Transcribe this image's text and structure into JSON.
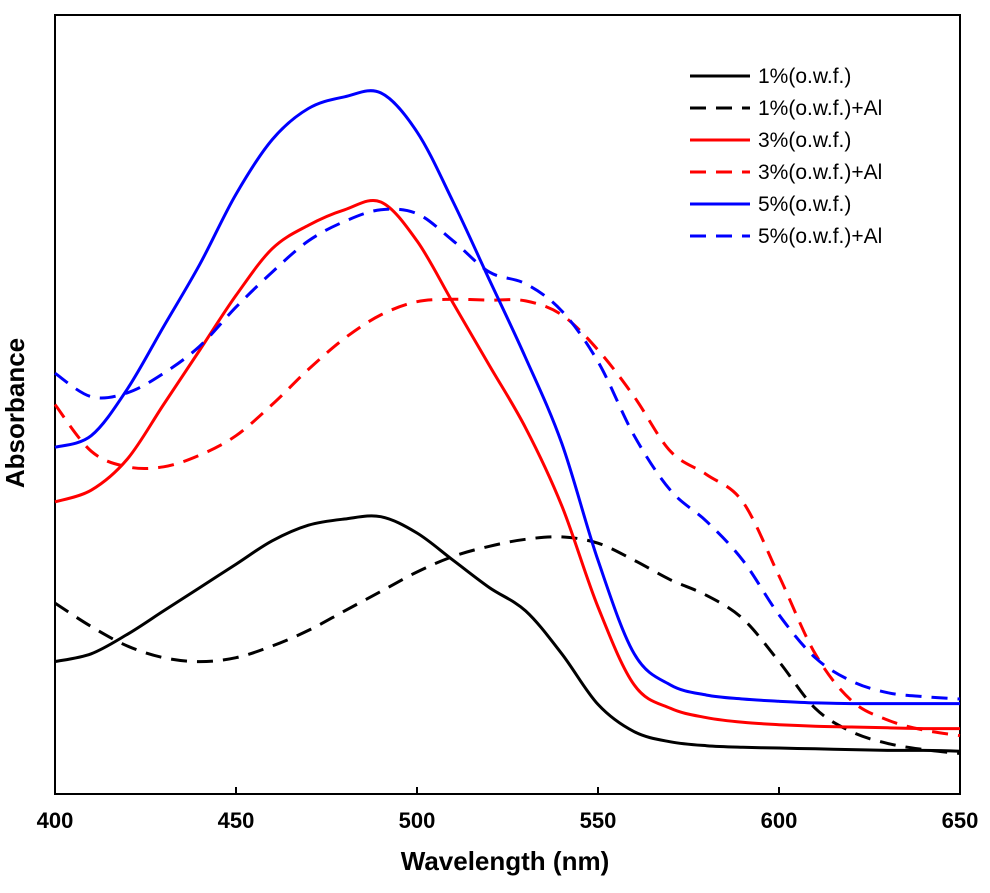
{
  "chart_data": {
    "type": "line",
    "title": "",
    "xlabel": "Wavelength (nm)",
    "ylabel": "Absorbance",
    "xlim": [
      400,
      650
    ],
    "ylim": [
      0,
      1
    ],
    "xticks": [
      400,
      450,
      500,
      550,
      600,
      650
    ],
    "grid": false,
    "legend_position": "top-right",
    "series": [
      {
        "name": "1%(o.w.f.)",
        "color": "#000000",
        "dash": "solid",
        "x": [
          400,
          410,
          420,
          430,
          440,
          450,
          460,
          470,
          480,
          490,
          500,
          510,
          520,
          530,
          540,
          550,
          560,
          570,
          580,
          590,
          600,
          610,
          620,
          630,
          640,
          650
        ],
        "y": [
          0.17,
          0.18,
          0.205,
          0.235,
          0.265,
          0.295,
          0.325,
          0.345,
          0.353,
          0.356,
          0.335,
          0.3,
          0.265,
          0.235,
          0.18,
          0.115,
          0.08,
          0.067,
          0.062,
          0.06,
          0.059,
          0.058,
          0.057,
          0.056,
          0.056,
          0.055
        ]
      },
      {
        "name": "1%(o.w.f.)+Al",
        "color": "#000000",
        "dash": "dashed",
        "x": [
          400,
          410,
          420,
          430,
          440,
          450,
          460,
          470,
          480,
          490,
          500,
          510,
          520,
          530,
          540,
          550,
          560,
          570,
          580,
          590,
          600,
          610,
          620,
          630,
          640,
          650
        ],
        "y": [
          0.245,
          0.215,
          0.19,
          0.175,
          0.17,
          0.175,
          0.19,
          0.21,
          0.235,
          0.26,
          0.285,
          0.305,
          0.318,
          0.327,
          0.33,
          0.322,
          0.3,
          0.275,
          0.255,
          0.225,
          0.17,
          0.11,
          0.08,
          0.065,
          0.057,
          0.052
        ]
      },
      {
        "name": "3%(o.w.f.)",
        "color": "#ff0000",
        "dash": "solid",
        "x": [
          400,
          410,
          420,
          430,
          440,
          450,
          460,
          470,
          480,
          490,
          500,
          510,
          520,
          530,
          540,
          550,
          560,
          570,
          580,
          590,
          600,
          610,
          620,
          630,
          640,
          650
        ],
        "y": [
          0.375,
          0.39,
          0.43,
          0.5,
          0.57,
          0.64,
          0.7,
          0.73,
          0.75,
          0.76,
          0.71,
          0.63,
          0.55,
          0.47,
          0.37,
          0.24,
          0.14,
          0.11,
          0.098,
          0.092,
          0.089,
          0.087,
          0.086,
          0.085,
          0.084,
          0.084
        ]
      },
      {
        "name": "3%(o.w.f.)+Al",
        "color": "#ff0000",
        "dash": "dashed",
        "x": [
          400,
          410,
          420,
          430,
          440,
          450,
          460,
          470,
          480,
          490,
          500,
          510,
          520,
          530,
          540,
          550,
          560,
          570,
          580,
          590,
          600,
          610,
          620,
          630,
          640,
          650
        ],
        "y": [
          0.5,
          0.44,
          0.42,
          0.42,
          0.435,
          0.46,
          0.5,
          0.545,
          0.585,
          0.615,
          0.632,
          0.635,
          0.634,
          0.633,
          0.615,
          0.57,
          0.51,
          0.44,
          0.41,
          0.375,
          0.28,
          0.18,
          0.12,
          0.095,
          0.082,
          0.075
        ]
      },
      {
        "name": "5%(o.w.f.)",
        "color": "#0000ff",
        "dash": "solid",
        "x": [
          400,
          410,
          420,
          430,
          440,
          450,
          460,
          470,
          480,
          490,
          500,
          510,
          520,
          530,
          540,
          550,
          560,
          570,
          580,
          590,
          600,
          610,
          620,
          630,
          640,
          650
        ],
        "y": [
          0.445,
          0.46,
          0.52,
          0.6,
          0.68,
          0.77,
          0.84,
          0.88,
          0.895,
          0.9,
          0.85,
          0.76,
          0.66,
          0.56,
          0.45,
          0.3,
          0.18,
          0.14,
          0.127,
          0.122,
          0.119,
          0.117,
          0.116,
          0.116,
          0.116,
          0.116
        ]
      },
      {
        "name": "5%(o.w.f.)+Al",
        "color": "#0000ff",
        "dash": "dashed",
        "x": [
          400,
          410,
          420,
          430,
          440,
          450,
          460,
          470,
          480,
          490,
          500,
          510,
          520,
          530,
          540,
          550,
          560,
          570,
          580,
          590,
          600,
          610,
          620,
          630,
          640,
          650
        ],
        "y": [
          0.54,
          0.51,
          0.515,
          0.54,
          0.575,
          0.625,
          0.67,
          0.71,
          0.735,
          0.75,
          0.745,
          0.71,
          0.67,
          0.655,
          0.62,
          0.555,
          0.46,
          0.39,
          0.35,
          0.3,
          0.23,
          0.175,
          0.145,
          0.13,
          0.125,
          0.122
        ]
      }
    ]
  }
}
